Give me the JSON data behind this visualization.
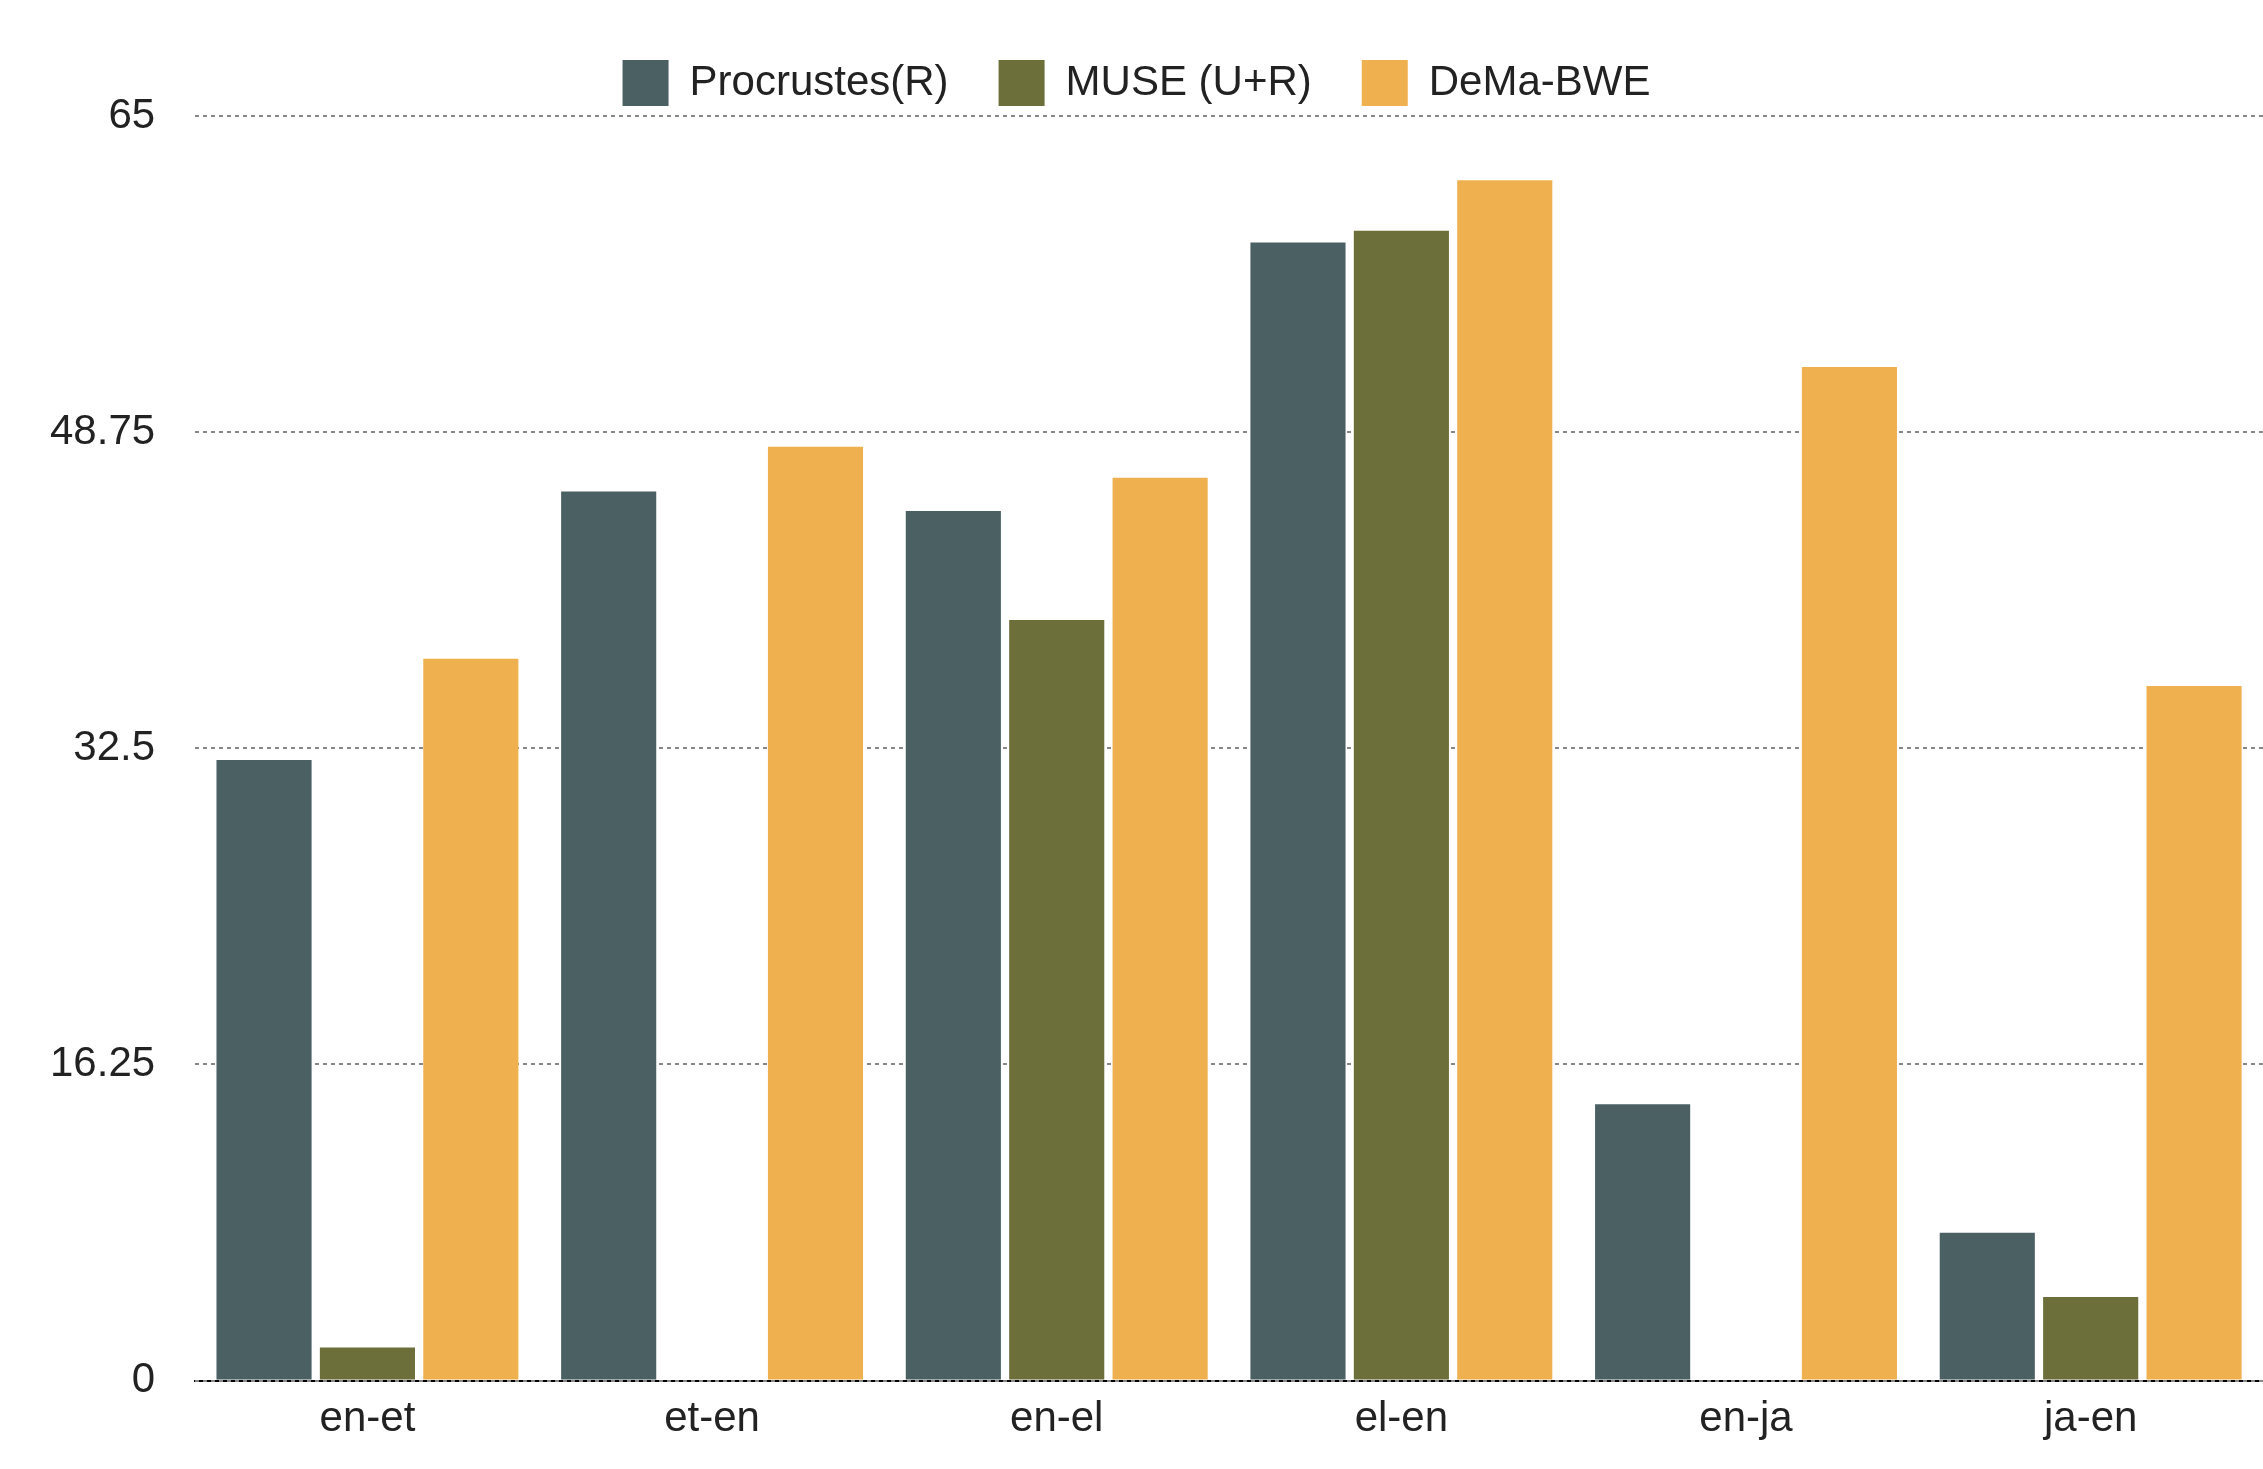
{
  "chart_data": {
    "type": "bar",
    "categories": [
      "en-et",
      "et-en",
      "en-el",
      "el-en",
      "en-ja",
      "ja-en"
    ],
    "series": [
      {
        "name": "Procrustes(R)",
        "color": "#4a6063",
        "values": [
          31.9,
          45.7,
          44.7,
          58.5,
          14.2,
          7.6
        ]
      },
      {
        "name": "MUSE (U+R)",
        "color": "#6c6f3a",
        "values": [
          1.7,
          0,
          39.1,
          59.1,
          0,
          4.3
        ]
      },
      {
        "name": "DeMa-BWE",
        "color": "#efb14f",
        "values": [
          37.1,
          48.0,
          46.4,
          61.7,
          52.1,
          35.7
        ]
      }
    ],
    "ylim": [
      0,
      65
    ],
    "yticks": [
      0,
      16.25,
      32.5,
      48.75,
      65
    ],
    "grid": "y",
    "legend": "top"
  }
}
